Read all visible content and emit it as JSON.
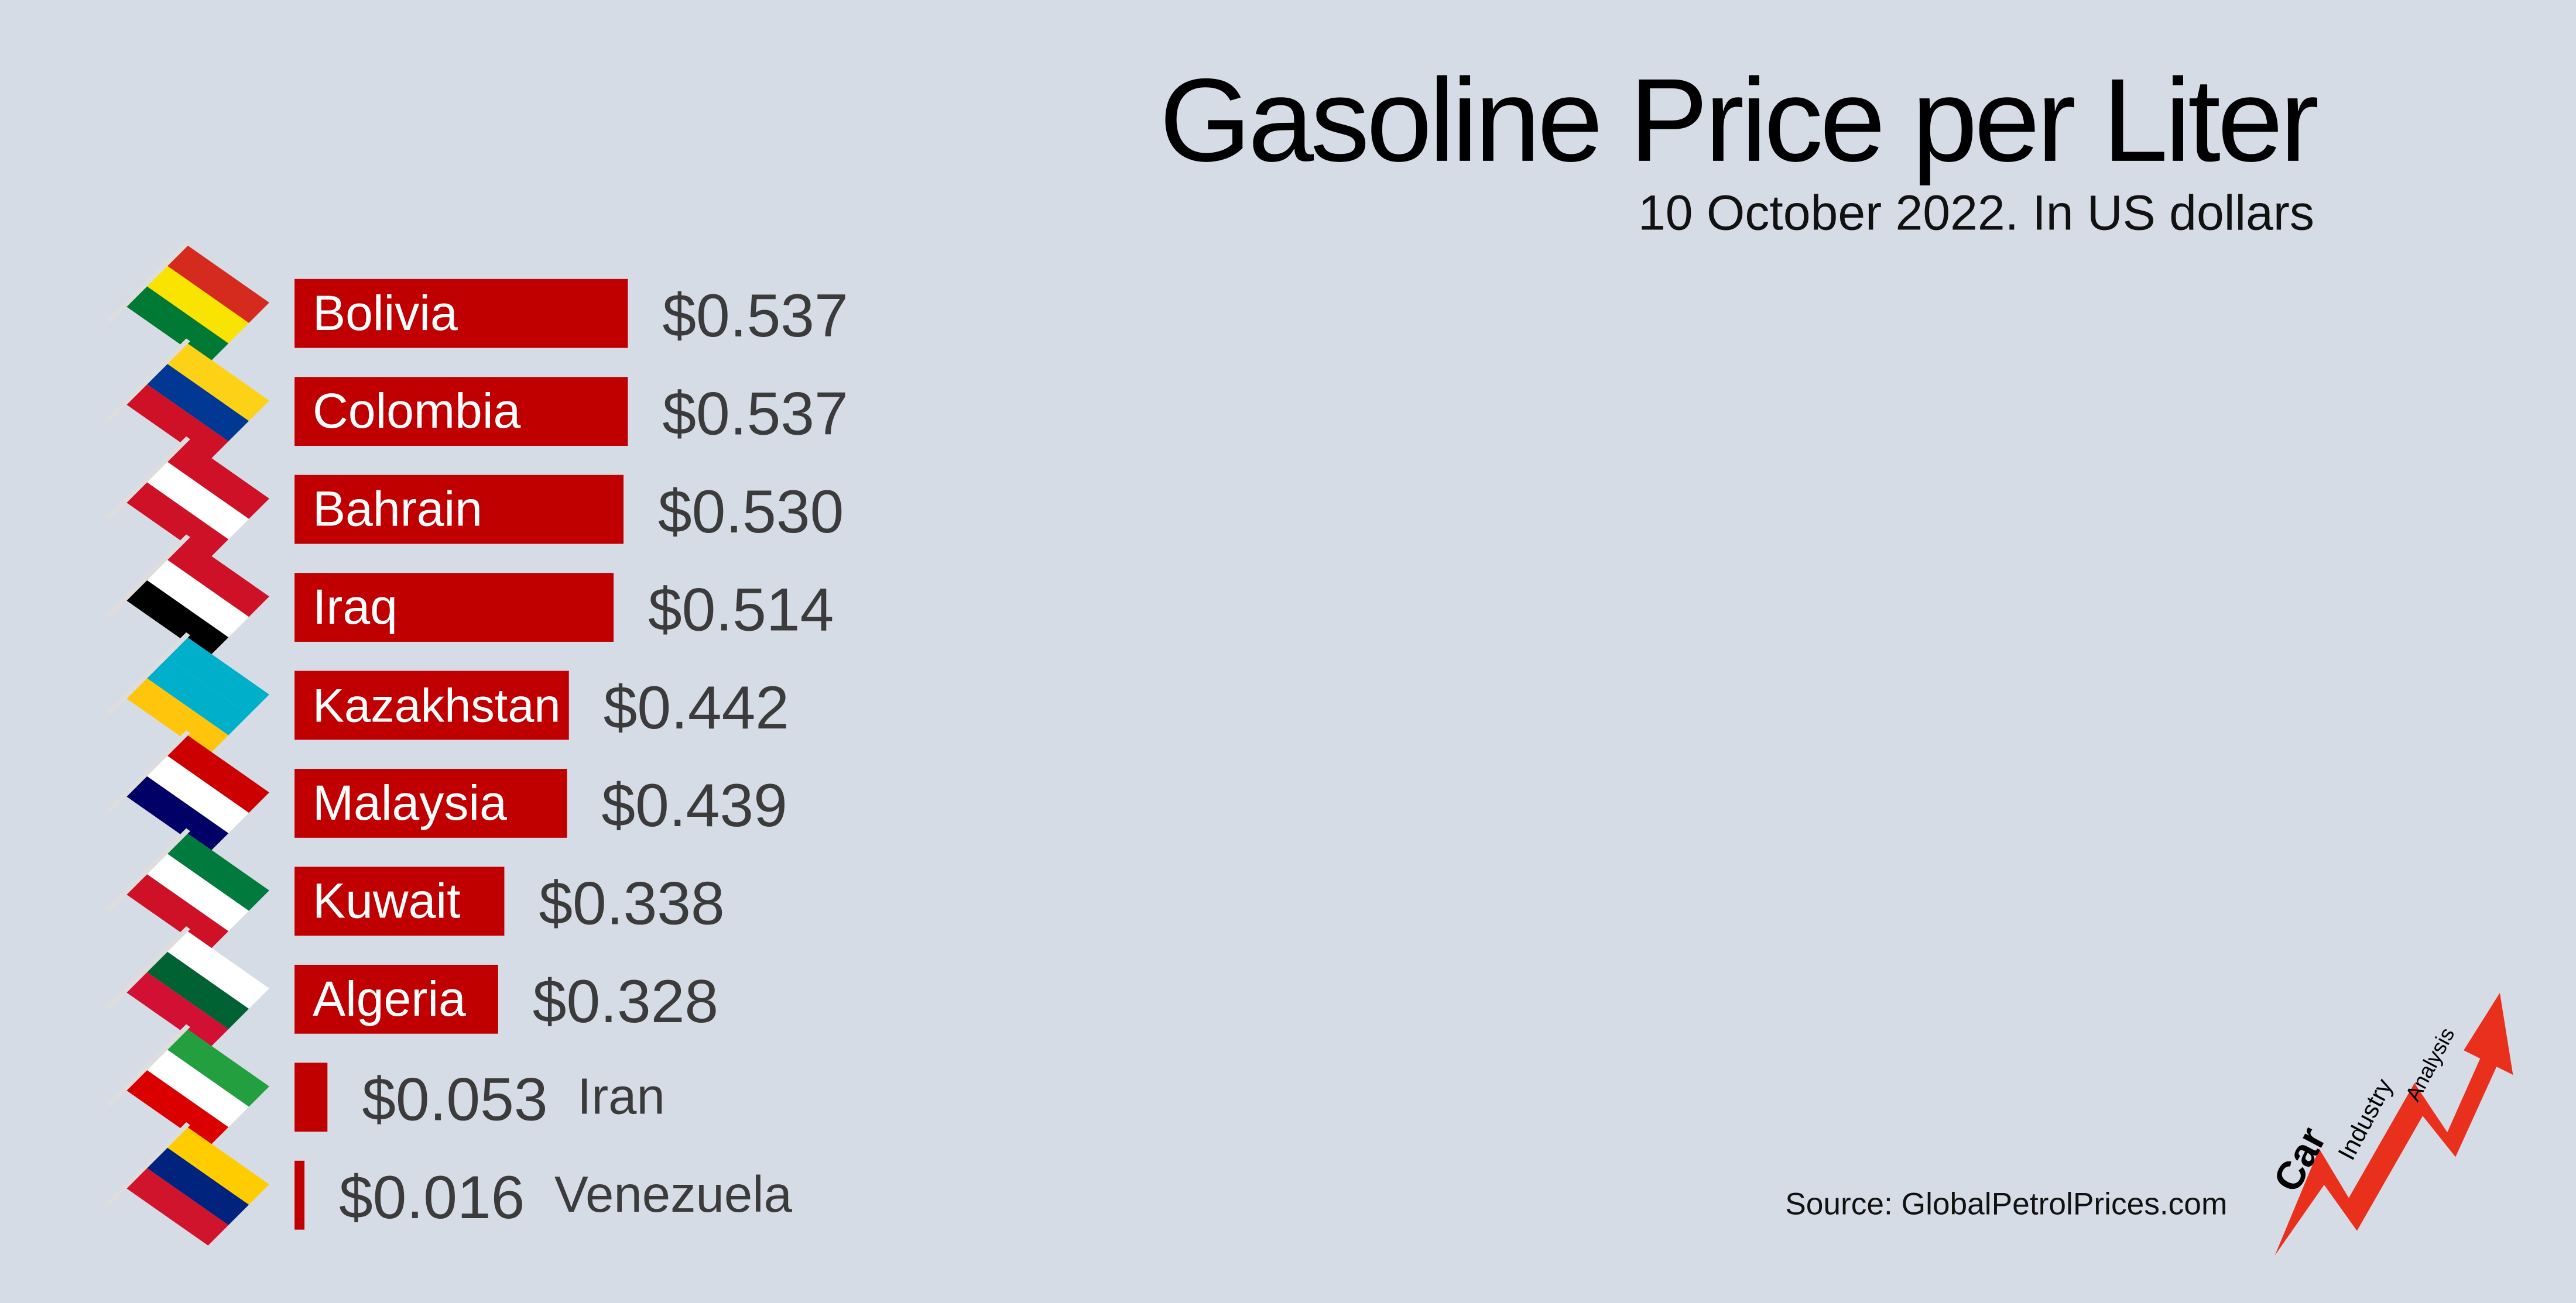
{
  "chart_data": {
    "type": "bar",
    "orientation": "horizontal",
    "title": "Gasoline Price per Liter",
    "subtitle": "10 October 2022. In US dollars",
    "source": "Source: GlobalPetrolPrices.com",
    "categories": [
      "Bolivia",
      "Colombia",
      "Bahrain",
      "Iraq",
      "Kazakhstan",
      "Malaysia",
      "Kuwait",
      "Algeria",
      "Iran",
      "Venezuela"
    ],
    "values": [
      0.537,
      0.537,
      0.53,
      0.514,
      0.442,
      0.439,
      0.338,
      0.328,
      0.053,
      0.016
    ],
    "value_labels": [
      "$0.537",
      "$0.537",
      "$0.530",
      "$0.514",
      "$0.442",
      "$0.439",
      "$0.338",
      "$0.328",
      "$0.053",
      "$0.016"
    ],
    "color": "#c00000"
  },
  "logo": {
    "words": [
      "Car",
      "Industry",
      "Analysis"
    ]
  }
}
